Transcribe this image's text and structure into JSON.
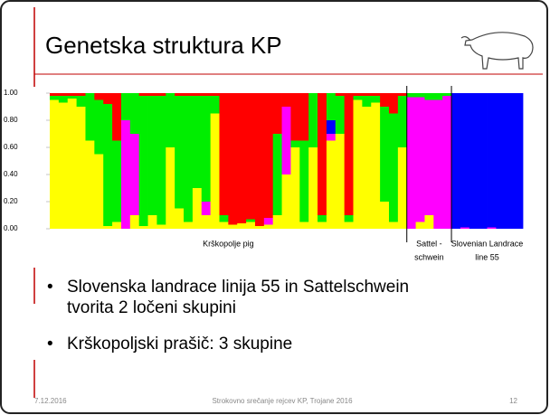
{
  "slide": {
    "title": "Genetska struktura KP",
    "bullets": [
      "Slovenska landrace linija 55 in Sattelschwein tvorita 2 ločeni skupini",
      "Krškopoljski prašič: 3 skupine"
    ],
    "footer": {
      "date": "7.12.2016",
      "event": "Strokovno srečanje rejcev KP, Trojane 2016",
      "page": "12"
    }
  },
  "chart_data": {
    "type": "stacked_bar",
    "ylim": [
      0,
      1
    ],
    "yticks": [
      {
        "value": 0,
        "label": "0.00"
      },
      {
        "value": 0.2,
        "label": "0.20"
      },
      {
        "value": 0.4,
        "label": "0.40"
      },
      {
        "value": 0.6,
        "label": "0.60"
      },
      {
        "value": 0.8,
        "label": "0.80"
      },
      {
        "value": 1,
        "label": "1.00"
      }
    ],
    "group_labels": [
      [
        "Krškopolje pig"
      ],
      [
        "Sattel -",
        "schwein"
      ],
      [
        "Slovenian Landrace",
        "line 55"
      ]
    ],
    "series": [
      {
        "color": "#ffff00",
        "values": [
          0.95,
          0.93,
          0.96,
          0.9,
          0.65,
          0.55,
          0.02,
          0.05,
          0,
          0.1,
          0.02,
          0.1,
          0.03,
          0.6,
          0.15,
          0.05,
          0.3,
          0.1,
          0.85,
          0.05,
          0.03,
          0.04,
          0.05,
          0.02,
          0.03,
          0.1,
          0.4,
          0.6,
          0.05,
          0.6,
          0.05,
          0.65,
          0.7,
          0.05,
          0.95,
          0.9,
          0.93,
          0.2,
          0.05,
          0.6,
          0,
          0.05,
          0.1,
          0,
          0,
          0,
          0,
          0,
          0,
          0,
          0,
          0,
          0
        ]
      },
      {
        "color": "#ff00ff",
        "values": [
          0,
          0,
          0,
          0,
          0,
          0,
          0,
          0,
          0.8,
          0.6,
          0,
          0,
          0,
          0,
          0,
          0,
          0,
          0.1,
          0,
          0,
          0,
          0,
          0,
          0,
          0.05,
          0,
          0.5,
          0,
          0,
          0,
          0,
          0.05,
          0,
          0,
          0,
          0,
          0,
          0,
          0,
          0,
          0.97,
          0.92,
          0.85,
          0.95,
          0.98,
          0,
          0.01,
          0,
          0,
          0.01,
          0,
          0,
          0
        ]
      },
      {
        "color": "#0000ff",
        "values": [
          0,
          0,
          0,
          0,
          0,
          0,
          0,
          0,
          0,
          0,
          0,
          0,
          0,
          0,
          0,
          0,
          0,
          0,
          0,
          0,
          0,
          0,
          0,
          0,
          0,
          0,
          0,
          0,
          0,
          0,
          0,
          0.1,
          0,
          0,
          0,
          0,
          0,
          0,
          0,
          0,
          0,
          0,
          0,
          0,
          0,
          1,
          0.99,
          1,
          1,
          0.99,
          1,
          1,
          1
        ]
      },
      {
        "color": "#00ee00",
        "values": [
          0.03,
          0.05,
          0.02,
          0.08,
          0.35,
          0.4,
          0.9,
          0.6,
          0.2,
          0.3,
          0.96,
          0.88,
          0.95,
          0.4,
          0.83,
          0.93,
          0.68,
          0.78,
          0.13,
          0.05,
          0,
          0,
          0.02,
          0,
          0,
          0.6,
          0,
          0.05,
          0.6,
          0.4,
          0.05,
          0.2,
          0.28,
          0.05,
          0.03,
          0.08,
          0.05,
          0.7,
          0.8,
          0.38,
          0.03,
          0.03,
          0.05,
          0.05,
          0.02,
          0,
          0,
          0,
          0,
          0,
          0,
          0,
          0
        ]
      },
      {
        "color": "#ff0000",
        "values": [
          0.02,
          0.02,
          0.02,
          0.02,
          0,
          0.05,
          0.08,
          0.35,
          0,
          0,
          0.02,
          0.02,
          0.02,
          0,
          0.02,
          0.02,
          0.02,
          0.02,
          0.02,
          0.9,
          0.97,
          0.96,
          0.93,
          0.98,
          0.92,
          0.3,
          0.1,
          0.35,
          0.35,
          0,
          0.9,
          0,
          0.02,
          0.9,
          0.02,
          0.02,
          0.02,
          0.1,
          0.15,
          0.02,
          0,
          0,
          0,
          0,
          0,
          0,
          0,
          0,
          0,
          0,
          0,
          0,
          0
        ]
      }
    ]
  }
}
